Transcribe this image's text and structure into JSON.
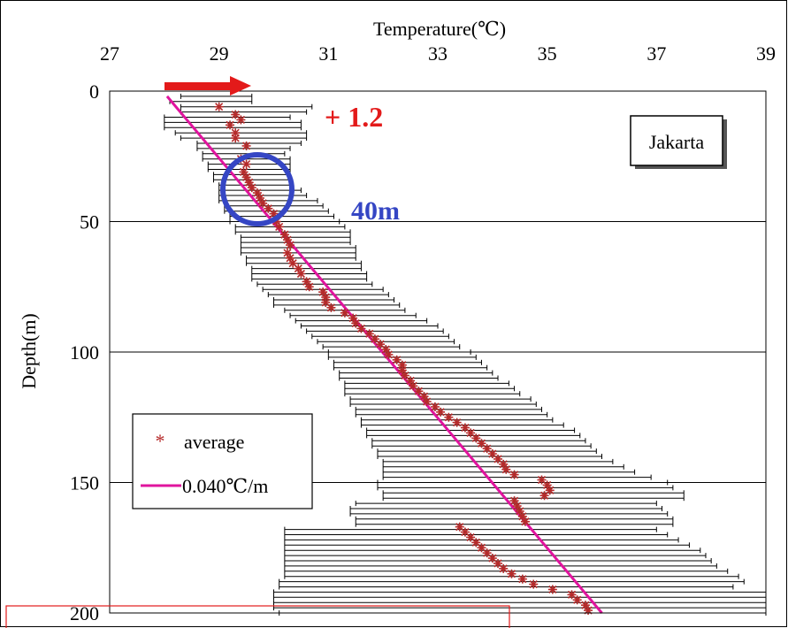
{
  "chart_data": {
    "type": "scatter",
    "xlabel": "Temperature(℃)",
    "ylabel": "Depth(m)",
    "x_axis_position": "top",
    "y_axis_inverted": true,
    "xlim": [
      27,
      39
    ],
    "ylim": [
      0,
      200
    ],
    "x_ticks": [
      "27",
      "29",
      "31",
      "33",
      "35",
      "37",
      "39"
    ],
    "y_ticks": [
      "0",
      "50",
      "100",
      "150",
      "200"
    ],
    "grid": "horizontal",
    "location_label": "Jakarta",
    "legend": {
      "position": "bottom-left",
      "items": [
        {
          "marker": "*",
          "label": "average",
          "color": "#b52a2a"
        },
        {
          "marker": "line",
          "label": "0.040℃/m",
          "color": "#e0149e"
        }
      ]
    },
    "annotations": {
      "warming_label": "+ 1.2",
      "depth_label": "40m",
      "warming_color": "#e31a1a",
      "depth_color": "#3546c4"
    },
    "series": [
      {
        "name": "average",
        "color": "#b52a2a",
        "marker": "*",
        "points": [
          [
            29.0,
            6
          ],
          [
            29.3,
            9
          ],
          [
            29.4,
            11
          ],
          [
            29.2,
            13
          ],
          [
            29.3,
            16
          ],
          [
            29.3,
            18
          ],
          [
            29.5,
            21
          ],
          [
            29.4,
            26
          ],
          [
            29.5,
            28
          ],
          [
            29.45,
            31
          ],
          [
            29.5,
            33
          ],
          [
            29.55,
            35
          ],
          [
            29.6,
            37
          ],
          [
            29.7,
            39
          ],
          [
            29.75,
            41
          ],
          [
            29.8,
            43
          ],
          [
            29.9,
            45
          ],
          [
            30.0,
            47
          ],
          [
            30.05,
            50
          ],
          [
            30.1,
            52
          ],
          [
            30.2,
            55
          ],
          [
            30.25,
            57
          ],
          [
            30.3,
            59
          ],
          [
            30.25,
            62
          ],
          [
            30.3,
            64
          ],
          [
            30.35,
            66
          ],
          [
            30.45,
            68
          ],
          [
            30.5,
            70
          ],
          [
            30.6,
            73
          ],
          [
            30.65,
            75
          ],
          [
            30.9,
            77
          ],
          [
            30.95,
            79
          ],
          [
            30.95,
            81
          ],
          [
            31.05,
            83
          ],
          [
            31.3,
            85
          ],
          [
            31.45,
            87
          ],
          [
            31.5,
            89
          ],
          [
            31.6,
            91
          ],
          [
            31.75,
            93
          ],
          [
            31.85,
            95
          ],
          [
            31.95,
            97
          ],
          [
            32.05,
            99
          ],
          [
            32.1,
            101
          ],
          [
            32.25,
            103
          ],
          [
            32.35,
            105
          ],
          [
            32.35,
            107
          ],
          [
            32.4,
            109
          ],
          [
            32.5,
            111
          ],
          [
            32.55,
            113
          ],
          [
            32.65,
            115
          ],
          [
            32.75,
            117
          ],
          [
            32.8,
            119
          ],
          [
            32.95,
            121
          ],
          [
            33.05,
            123
          ],
          [
            33.2,
            125
          ],
          [
            33.35,
            127
          ],
          [
            33.5,
            129
          ],
          [
            33.6,
            131
          ],
          [
            33.7,
            133
          ],
          [
            33.8,
            135
          ],
          [
            33.9,
            137
          ],
          [
            34.0,
            139
          ],
          [
            34.1,
            141
          ],
          [
            34.2,
            143
          ],
          [
            34.25,
            145
          ],
          [
            34.4,
            147
          ],
          [
            34.9,
            149
          ],
          [
            35.0,
            151
          ],
          [
            35.05,
            153
          ],
          [
            34.95,
            155
          ],
          [
            34.4,
            157
          ],
          [
            34.45,
            159
          ],
          [
            34.5,
            161
          ],
          [
            34.55,
            163
          ],
          [
            34.6,
            165
          ],
          [
            33.4,
            167
          ],
          [
            33.5,
            169
          ],
          [
            33.6,
            171
          ],
          [
            33.7,
            173
          ],
          [
            33.8,
            175
          ],
          [
            33.9,
            177
          ],
          [
            34.0,
            179
          ],
          [
            34.1,
            181
          ],
          [
            34.2,
            183
          ],
          [
            34.35,
            185
          ],
          [
            34.55,
            187
          ],
          [
            34.75,
            189
          ],
          [
            35.1,
            191
          ],
          [
            35.45,
            193
          ],
          [
            35.55,
            195
          ],
          [
            35.7,
            197
          ],
          [
            35.75,
            199
          ]
        ]
      },
      {
        "name": "0.040℃/m",
        "color": "#e0149e",
        "type": "line",
        "points": [
          [
            28.05,
            2
          ],
          [
            36.0,
            200
          ]
        ]
      },
      {
        "name": "range",
        "type": "error_bars",
        "color": "#000000",
        "comment": "min/max temperature range at each depth",
        "ranges": [
          [
            28.3,
            29.6,
            2
          ],
          [
            28.1,
            29.6,
            4
          ],
          [
            28.3,
            30.7,
            6
          ],
          [
            28.3,
            30.6,
            8
          ],
          [
            28.0,
            30.3,
            10
          ],
          [
            28.0,
            30.5,
            12
          ],
          [
            28.0,
            30.5,
            14
          ],
          [
            28.2,
            30.6,
            16
          ],
          [
            28.3,
            30.6,
            18
          ],
          [
            28.6,
            30.5,
            20
          ],
          [
            28.6,
            30.3,
            22
          ],
          [
            28.7,
            30.2,
            24
          ],
          [
            28.7,
            30.3,
            26
          ],
          [
            28.8,
            30.3,
            28
          ],
          [
            28.8,
            30.3,
            30
          ],
          [
            28.9,
            30.3,
            32
          ],
          [
            28.9,
            30.3,
            34
          ],
          [
            29.0,
            30.3,
            36
          ],
          [
            29.0,
            30.5,
            38
          ],
          [
            29.0,
            30.6,
            40
          ],
          [
            29.0,
            30.8,
            42
          ],
          [
            29.1,
            30.9,
            44
          ],
          [
            29.1,
            31.0,
            46
          ],
          [
            29.2,
            31.1,
            48
          ],
          [
            29.2,
            31.2,
            50
          ],
          [
            29.3,
            31.3,
            52
          ],
          [
            29.3,
            31.4,
            54
          ],
          [
            29.4,
            31.4,
            56
          ],
          [
            29.4,
            31.4,
            58
          ],
          [
            29.4,
            31.5,
            60
          ],
          [
            29.4,
            31.5,
            62
          ],
          [
            29.5,
            31.5,
            64
          ],
          [
            29.5,
            31.6,
            66
          ],
          [
            29.6,
            31.6,
            68
          ],
          [
            29.6,
            31.7,
            70
          ],
          [
            29.6,
            31.7,
            72
          ],
          [
            29.7,
            31.8,
            74
          ],
          [
            29.8,
            32.0,
            76
          ],
          [
            29.9,
            32.1,
            78
          ],
          [
            30.0,
            32.2,
            80
          ],
          [
            30.0,
            32.3,
            82
          ],
          [
            30.2,
            32.4,
            84
          ],
          [
            30.3,
            32.6,
            86
          ],
          [
            30.4,
            32.8,
            88
          ],
          [
            30.5,
            33.0,
            90
          ],
          [
            30.6,
            33.1,
            92
          ],
          [
            30.7,
            33.2,
            94
          ],
          [
            30.8,
            33.3,
            96
          ],
          [
            30.9,
            33.4,
            98
          ],
          [
            31.0,
            33.6,
            100
          ],
          [
            31.0,
            33.7,
            102
          ],
          [
            31.1,
            33.8,
            104
          ],
          [
            31.1,
            33.9,
            106
          ],
          [
            31.2,
            34.0,
            108
          ],
          [
            31.2,
            34.1,
            110
          ],
          [
            31.3,
            34.3,
            112
          ],
          [
            31.3,
            34.4,
            114
          ],
          [
            31.3,
            34.5,
            116
          ],
          [
            31.4,
            34.7,
            118
          ],
          [
            31.4,
            34.8,
            120
          ],
          [
            31.5,
            34.9,
            122
          ],
          [
            31.5,
            35.0,
            124
          ],
          [
            31.6,
            35.1,
            126
          ],
          [
            31.6,
            35.3,
            128
          ],
          [
            31.7,
            35.5,
            130
          ],
          [
            31.7,
            35.6,
            132
          ],
          [
            31.8,
            35.7,
            134
          ],
          [
            31.8,
            35.8,
            136
          ],
          [
            31.9,
            35.9,
            138
          ],
          [
            31.9,
            36.0,
            140
          ],
          [
            32.0,
            36.2,
            142
          ],
          [
            32.0,
            36.4,
            144
          ],
          [
            32.0,
            36.6,
            146
          ],
          [
            32.0,
            36.9,
            148
          ],
          [
            31.9,
            37.2,
            150
          ],
          [
            31.9,
            37.3,
            152
          ],
          [
            32.0,
            37.5,
            154
          ],
          [
            32.0,
            37.5,
            156
          ],
          [
            31.5,
            37.0,
            158
          ],
          [
            31.4,
            37.1,
            160
          ],
          [
            31.4,
            37.2,
            162
          ],
          [
            31.5,
            37.3,
            164
          ],
          [
            31.5,
            37.3,
            166
          ],
          [
            30.2,
            37.0,
            168
          ],
          [
            30.2,
            37.2,
            170
          ],
          [
            30.2,
            37.4,
            172
          ],
          [
            30.2,
            37.6,
            174
          ],
          [
            30.2,
            37.8,
            176
          ],
          [
            30.2,
            37.9,
            178
          ],
          [
            30.2,
            38.0,
            180
          ],
          [
            30.2,
            38.1,
            182
          ],
          [
            30.2,
            38.3,
            184
          ],
          [
            30.2,
            38.5,
            186
          ],
          [
            30.1,
            38.6,
            188
          ],
          [
            30.1,
            38.4,
            190
          ],
          [
            30.0,
            39.0,
            192
          ],
          [
            30.0,
            39.0,
            194
          ],
          [
            30.0,
            39.0,
            196
          ],
          [
            30.0,
            39.0,
            198
          ],
          [
            30.1,
            39.0,
            200
          ]
        ]
      }
    ]
  }
}
